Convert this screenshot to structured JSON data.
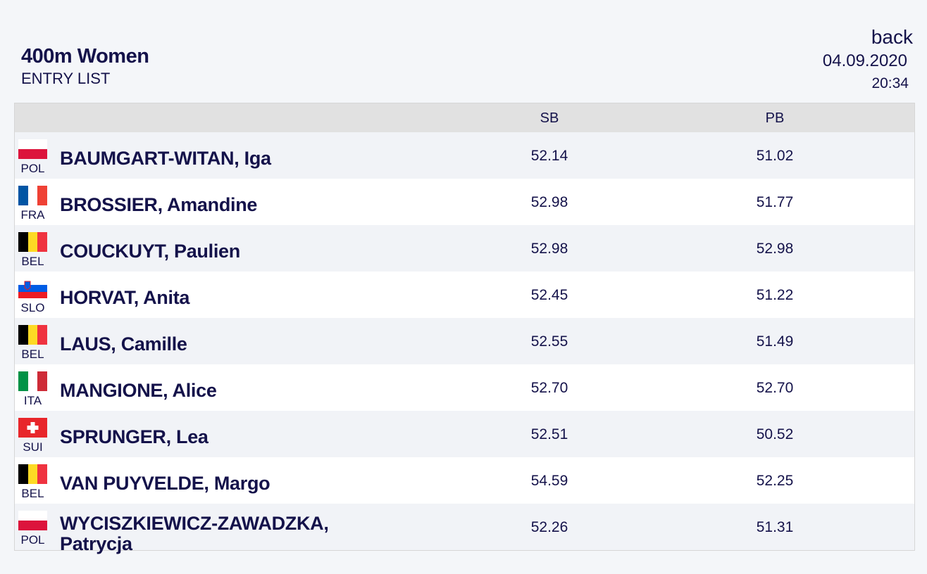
{
  "header": {
    "title": "400m Women",
    "subtitle": "ENTRY LIST",
    "back": "back",
    "date": "04.09.2020",
    "time": "20:34"
  },
  "table": {
    "columns": [
      "SB",
      "PB"
    ],
    "rows": [
      {
        "country": "POL",
        "name": "BAUMGART-WITAN, Iga",
        "sb": "52.14",
        "pb": "51.02"
      },
      {
        "country": "FRA",
        "name": "BROSSIER, Amandine",
        "sb": "52.98",
        "pb": "51.77"
      },
      {
        "country": "BEL",
        "name": "COUCKUYT, Paulien",
        "sb": "52.98",
        "pb": "52.98"
      },
      {
        "country": "SLO",
        "name": "HORVAT, Anita",
        "sb": "52.45",
        "pb": "51.22"
      },
      {
        "country": "BEL",
        "name": "LAUS, Camille",
        "sb": "52.55",
        "pb": "51.49"
      },
      {
        "country": "ITA",
        "name": "MANGIONE, Alice",
        "sb": "52.70",
        "pb": "52.70"
      },
      {
        "country": "SUI",
        "name": "SPRUNGER, Lea",
        "sb": "52.51",
        "pb": "50.52"
      },
      {
        "country": "BEL",
        "name": "VAN PUYVELDE, Margo",
        "sb": "54.59",
        "pb": "52.25"
      },
      {
        "country": "POL",
        "name": "WYCISZKIEWICZ-ZAWADZKA, Patrycja",
        "sb": "52.26",
        "pb": "51.31"
      }
    ]
  }
}
